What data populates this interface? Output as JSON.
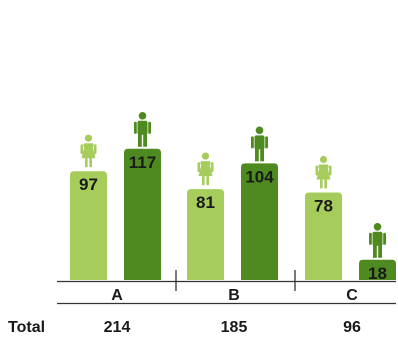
{
  "colors": {
    "female": "#a6cc5c",
    "male": "#4e8a1f",
    "axis": "#333333",
    "title": "#7db83a"
  },
  "chart_data": {
    "type": "bar",
    "title": "",
    "categories": [
      "A",
      "B",
      "C"
    ],
    "series": [
      {
        "icon": "female-icon",
        "values": [
          97,
          81,
          78
        ]
      },
      {
        "icon": "male-icon",
        "values": [
          117,
          104,
          18
        ]
      }
    ],
    "totals_label": "Total",
    "totals": [
      214,
      185,
      96
    ],
    "ylim": [
      0,
      230
    ],
    "grid": false
  }
}
